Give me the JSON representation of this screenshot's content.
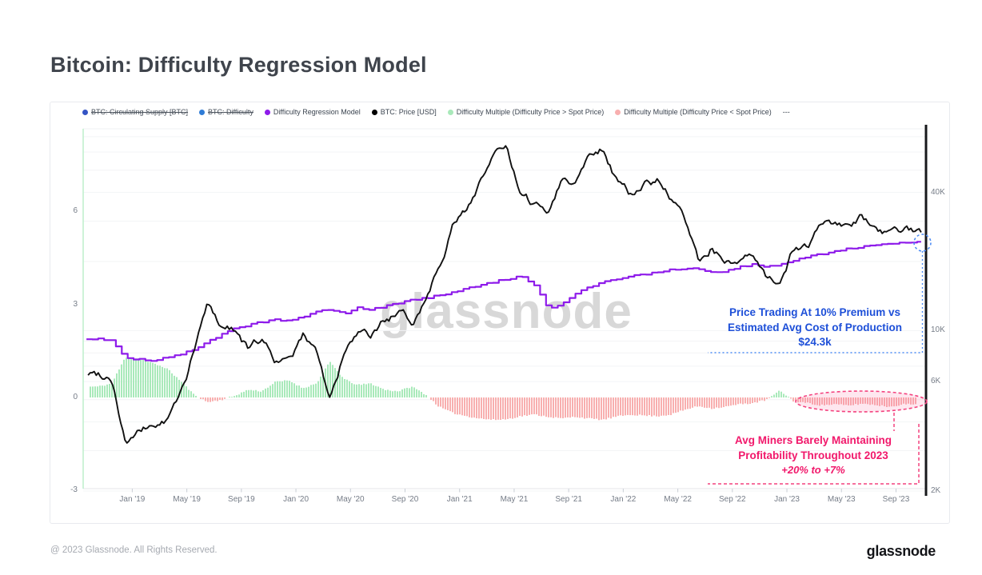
{
  "page": {
    "title": "Bitcoin: Difficulty Regression Model"
  },
  "watermark": "glassnode",
  "footer": {
    "copyright": "@ 2023 Glassnode. All Rights Reserved.",
    "logo": "glassnode"
  },
  "legend": [
    {
      "label": "BTC: Circulating Supply [BTC]",
      "color": "#3454C4",
      "disabled": true
    },
    {
      "label": "BTC: Difficulty",
      "color": "#2F7CD6",
      "disabled": true
    },
    {
      "label": "Difficulty Regression Model",
      "color": "#8E1BEA",
      "disabled": false
    },
    {
      "label": "BTC: Price [USD]",
      "color": "#000000",
      "disabled": false
    },
    {
      "label": "Difficulty Multiple (Difficulty Price > Spot Price)",
      "color": "#A9E9BA",
      "disabled": false
    },
    {
      "label": "Difficulty Multiple (Difficulty Price < Spot Price)",
      "color": "#F8AFAF",
      "disabled": false
    },
    {
      "label": "---",
      "color": null,
      "disabled": false
    }
  ],
  "annotations": {
    "premium": {
      "lines": [
        "Price Trading At 10% Premium vs",
        "Estimated Avg Cost of Production",
        "$24.3k"
      ],
      "color": "#1D4FD8",
      "dash_color": "#4E8DF5"
    },
    "miners": {
      "lines": [
        "Avg Miners Barely Maintaining",
        "Profitability Throughout 2023"
      ],
      "subline": "+20% to +7%",
      "color": "#F1186B",
      "dash_color": "#F4427F"
    }
  },
  "chart_data": {
    "type": "line",
    "title": "Bitcoin: Difficulty Regression Model",
    "x_ticks": [
      "Jan '19",
      "May '19",
      "Sep '19",
      "Jan '20",
      "May '20",
      "Sep '20",
      "Jan '21",
      "May '21",
      "Sep '21",
      "Jan '22",
      "May '22",
      "Sep '22",
      "Jan '23",
      "May '23",
      "Sep '23"
    ],
    "left_axis": {
      "ticks": [
        6,
        3,
        0,
        -3
      ],
      "range": [
        -2.95,
        8.7
      ],
      "grid": true
    },
    "right_axis": {
      "scale": "log",
      "range": [
        2000,
        76000
      ],
      "ticks": [
        {
          "label": "40K",
          "value": 40000
        },
        {
          "label": "10K",
          "value": 10000
        },
        {
          "label": "6K",
          "value": 6000
        },
        {
          "label": "2K",
          "value": 2000
        }
      ]
    },
    "legend_position": "top",
    "months": [
      "2018-10",
      "2018-11",
      "2018-12",
      "2019-01",
      "2019-02",
      "2019-03",
      "2019-04",
      "2019-05",
      "2019-06",
      "2019-07",
      "2019-08",
      "2019-09",
      "2019-10",
      "2019-11",
      "2019-12",
      "2020-01",
      "2020-02",
      "2020-03",
      "2020-04",
      "2020-05",
      "2020-06",
      "2020-07",
      "2020-08",
      "2020-09",
      "2020-10",
      "2020-11",
      "2020-12",
      "2021-01",
      "2021-02",
      "2021-03",
      "2021-04",
      "2021-05",
      "2021-06",
      "2021-07",
      "2021-08",
      "2021-09",
      "2021-10",
      "2021-11",
      "2021-12",
      "2022-01",
      "2022-02",
      "2022-03",
      "2022-04",
      "2022-05",
      "2022-06",
      "2022-07",
      "2022-08",
      "2022-09",
      "2022-10",
      "2022-11",
      "2022-12",
      "2023-01",
      "2023-02",
      "2023-03",
      "2023-04",
      "2023-05",
      "2023-06",
      "2023-07",
      "2023-08",
      "2023-09"
    ],
    "series": [
      {
        "name": "BTC: Price [USD]",
        "axis": "right",
        "type": "line",
        "color": "#111111",
        "values": [
          6500,
          6350,
          3300,
          3550,
          3850,
          4000,
          5200,
          8000,
          12900,
          10500,
          10300,
          8300,
          9200,
          7500,
          7200,
          9350,
          8600,
          5000,
          7800,
          9500,
          9100,
          11100,
          11700,
          10800,
          13800,
          19700,
          29000,
          33100,
          45200,
          58800,
          61000,
          37300,
          35000,
          33500,
          47100,
          43800,
          61300,
          64000,
          46200,
          38500,
          43200,
          45500,
          37700,
          29800,
          19800,
          23300,
          20000,
          19400,
          20500,
          16500,
          16600,
          23100,
          23500,
          28500,
          29300,
          27200,
          30500,
          29200,
          26000,
          26900
        ]
      },
      {
        "name": "Difficulty Regression Model",
        "axis": "right",
        "type": "step-line",
        "color": "#8E1BEA",
        "values": [
          9200,
          9000,
          7600,
          7500,
          7400,
          7600,
          7900,
          8300,
          8900,
          9600,
          10200,
          10600,
          10900,
          11200,
          11000,
          11500,
          12200,
          12400,
          11800,
          12600,
          12300,
          12800,
          13200,
          13600,
          13900,
          14200,
          14700,
          15200,
          15800,
          16300,
          16800,
          17300,
          15800,
          12500,
          13000,
          14500,
          15500,
          16200,
          16800,
          17200,
          17600,
          18000,
          18400,
          18700,
          18500,
          17800,
          18200,
          18900,
          19400,
          19000,
          19300,
          20200,
          21000,
          21600,
          22200,
          22700,
          23100,
          23500,
          24000,
          24300
        ]
      },
      {
        "name": "Difficulty Multiple",
        "axis": "left",
        "type": "bars",
        "positive_color": "#A9E9BA",
        "negative_color": "#F8AFAF",
        "values": [
          0.35,
          0.45,
          1.3,
          1.25,
          1.1,
          0.95,
          0.55,
          0.1,
          -0.15,
          -0.08,
          0.05,
          0.25,
          0.2,
          0.5,
          0.55,
          0.3,
          0.45,
          1.15,
          0.6,
          0.4,
          0.45,
          0.25,
          0.2,
          0.35,
          0.1,
          -0.3,
          -0.5,
          -0.6,
          -0.68,
          -0.72,
          -0.7,
          -0.6,
          -0.55,
          -0.62,
          -0.68,
          -0.62,
          -0.68,
          -0.72,
          -0.62,
          -0.55,
          -0.58,
          -0.6,
          -0.55,
          -0.4,
          -0.28,
          -0.35,
          -0.3,
          -0.22,
          -0.18,
          -0.08,
          0.22,
          -0.12,
          -0.18,
          -0.25,
          -0.22,
          -0.26,
          -0.2,
          -0.24,
          -0.3,
          -0.22
        ]
      }
    ]
  }
}
